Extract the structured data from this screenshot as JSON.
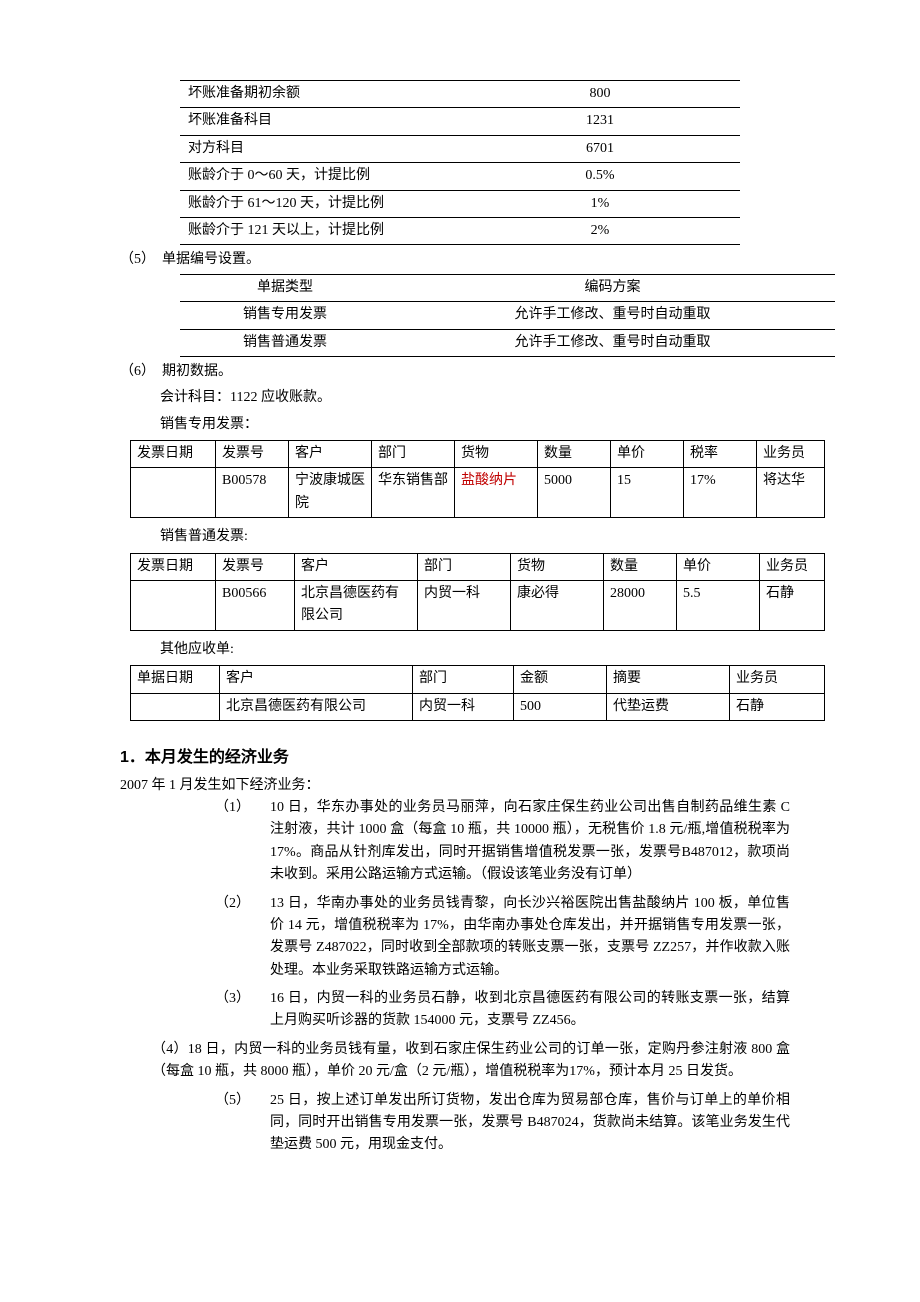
{
  "kv_rows": [
    {
      "k": "坏账准备期初余额",
      "v": "800"
    },
    {
      "k": "坏账准备科目",
      "v": "1231"
    },
    {
      "k": "对方科目",
      "v": "6701"
    },
    {
      "k": "账龄介于 0～60 天，计提比例",
      "v": "0.5%"
    },
    {
      "k": "账龄介于 61～120 天，计提比例",
      "v": "1%"
    },
    {
      "k": "账龄介于 121 天以上，计提比例",
      "v": "2%"
    }
  ],
  "p5_label": "（5）　单据编号设置。",
  "enc_head": {
    "c1": "单据类型",
    "c2": "编码方案"
  },
  "enc_rows": [
    {
      "c1": "销售专用发票",
      "c2": "允许手工修改、重号时自动重取"
    },
    {
      "c1": "销售普通发票",
      "c2": "允许手工修改、重号时自动重取"
    }
  ],
  "p6_label": "（6）　期初数据。",
  "p6_sub1": "会计科目：1122 应收账款。",
  "p6_sub2": "销售专用发票：",
  "inv1_head": {
    "c1": "发票日期",
    "c2": "发票号",
    "c3": "客户",
    "c4": "部门",
    "c5": "货物",
    "c6": "数量",
    "c7": "单价",
    "c8": "税率",
    "c9": "业务员"
  },
  "inv1_row": {
    "c1": "",
    "c2": "B00578",
    "c3": "宁波康城医院",
    "c4": "华东销售部",
    "c5": "盐酸纳片",
    "c6": "5000",
    "c7": "15",
    "c8": "17%",
    "c9": "将达华"
  },
  "p6_sub3": "销售普通发票:",
  "inv2_head": {
    "c1": "发票日期",
    "c2": "发票号",
    "c3": "客户",
    "c4": "部门",
    "c5": "货物",
    "c6": "数量",
    "c7": "单价",
    "c8": "业务员"
  },
  "inv2_row": {
    "c1": "",
    "c2": "B00566",
    "c3": "北京昌德医药有限公司",
    "c4": "内贸一科",
    "c5": "康必得",
    "c6": "28000",
    "c7": "5.5",
    "c8": "石静"
  },
  "p6_sub4": "其他应收单:",
  "inv3_head": {
    "c1": "单据日期",
    "c2": "客户",
    "c3": "部门",
    "c4": "金额",
    "c5": "摘要",
    "c6": "业务员"
  },
  "inv3_row": {
    "c1": "",
    "c2": "北京昌德医药有限公司",
    "c3": "内贸一科",
    "c4": "500",
    "c5": "代垫运费",
    "c6": "石静"
  },
  "sec_title": "1．本月发生的经济业务",
  "sec_intro": "2007 年 1 月发生如下经济业务：",
  "biz": [
    {
      "n": "（1）",
      "t": "10 日，华东办事处的业务员马丽萍，向石家庄保生药业公司出售自制药品维生素 C 注射液，共计 1000 盒（每盒 10 瓶，共 10000 瓶），无税售价 1.8 元/瓶,增值税税率为 17%。商品从针剂库发出，同时开据销售增值税发票一张，发票号B487012，款项尚未收到。采用公路运输方式运输。（假设该笔业务没有订单）"
    },
    {
      "n": "（2）",
      "t": "13 日，华南办事处的业务员钱青黎，向长沙兴裕医院出售盐酸纳片 100 板，单位售价 14 元，增值税税率为 17%，由华南办事处仓库发出，并开据销售专用发票一张，发票号 Z487022，同时收到全部款项的转账支票一张，支票号 ZZ257，并作收款入账处理。本业务采取铁路运输方式运输。"
    },
    {
      "n": "（3）",
      "t": "16 日，内贸一科的业务员石静，收到北京昌德医药有限公司的转账支票一张，结算上月购买听诊器的货款 154000 元，支票号 ZZ456。"
    }
  ],
  "biz4_n": "（4）",
  "biz4_t": "18 日，内贸一科的业务员钱有量，收到石家庄保生药业公司的订单一张，定购丹参注射液 800 盒（每盒 10 瓶，共 8000 瓶），单价 20 元/盒（2 元/瓶），增值税税率为17%，预计本月 25 日发货。",
  "biz5_n": "（5）",
  "biz5_t": "25 日，按上述订单发出所订货物，发出仓库为贸易部仓库，售价与订单上的单价相同，同时开出销售专用发票一张，发票号 B487024，货款尚未结算。该笔业务发生代垫运费 500 元，用现金支付。"
}
